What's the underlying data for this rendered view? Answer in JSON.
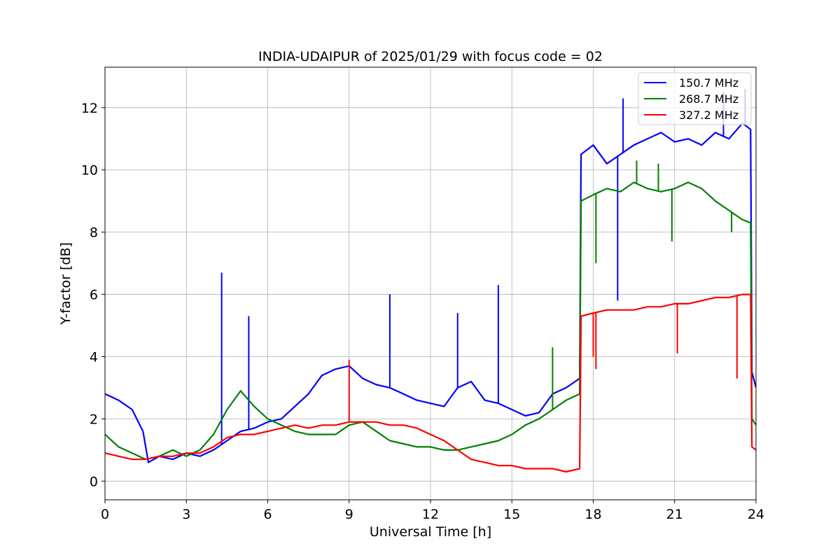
{
  "chart_data": {
    "type": "line",
    "title": "INDIA-UDAIPUR of 2025/01/29 with focus code = 02",
    "xlabel": "Universal Time [h]",
    "ylabel": "Y-factor [dB]",
    "xlim": [
      0,
      24
    ],
    "ylim": [
      -0.6,
      13.3
    ],
    "xticks": [
      0,
      3,
      6,
      9,
      12,
      15,
      18,
      21,
      24
    ],
    "yticks": [
      0,
      2,
      4,
      6,
      8,
      10,
      12
    ],
    "grid": true,
    "legend_position": "top-right",
    "series": [
      {
        "name": "150.7 MHz",
        "color": "#0000ff",
        "x": [
          0,
          0.5,
          1,
          1.4,
          1.6,
          2,
          2.5,
          3,
          3.5,
          4,
          4.5,
          5,
          5.5,
          6,
          6.5,
          7,
          7.5,
          8,
          8.5,
          9,
          9.5,
          10,
          10.5,
          11,
          11.5,
          12,
          12.5,
          13,
          13.5,
          14,
          14.5,
          15,
          15.5,
          16,
          16.5,
          17,
          17.5,
          17.55,
          18,
          18.5,
          19,
          19.5,
          20,
          20.5,
          21,
          21.5,
          22,
          22.5,
          23,
          23.5,
          23.8,
          23.85,
          24
        ],
        "y": [
          2.8,
          2.6,
          2.3,
          1.6,
          0.6,
          0.8,
          0.7,
          0.9,
          0.8,
          1.0,
          1.3,
          1.6,
          1.7,
          1.9,
          2.0,
          2.4,
          2.8,
          3.4,
          3.6,
          3.7,
          3.3,
          3.1,
          3.0,
          2.8,
          2.6,
          2.5,
          2.4,
          3.0,
          3.2,
          2.6,
          2.5,
          2.3,
          2.1,
          2.2,
          2.8,
          3.0,
          3.3,
          10.5,
          10.8,
          10.2,
          10.5,
          10.8,
          11.0,
          11.2,
          10.9,
          11.0,
          10.8,
          11.2,
          11.0,
          11.5,
          11.3,
          3.5,
          3.0
        ],
        "spikes": [
          [
            4.3,
            6.7
          ],
          [
            5.3,
            5.3
          ],
          [
            10.5,
            6.0
          ],
          [
            14.5,
            6.3
          ],
          [
            13.0,
            5.4
          ],
          [
            18.9,
            5.8
          ],
          [
            19.1,
            12.3
          ],
          [
            22.8,
            12.5
          ],
          [
            23.6,
            12.6
          ]
        ]
      },
      {
        "name": "268.7 MHz",
        "color": "#008000",
        "x": [
          0,
          0.5,
          1,
          1.5,
          2,
          2.5,
          3,
          3.5,
          4,
          4.5,
          5,
          5.5,
          6,
          6.5,
          7,
          7.5,
          8,
          8.5,
          9,
          9.5,
          10,
          10.5,
          11,
          11.5,
          12,
          12.5,
          13,
          13.5,
          14,
          14.5,
          15,
          15.5,
          16,
          16.5,
          17,
          17.5,
          17.55,
          18,
          18.5,
          19,
          19.5,
          20,
          20.5,
          21,
          21.5,
          22,
          22.5,
          23,
          23.5,
          23.8,
          23.85,
          24
        ],
        "y": [
          1.5,
          1.1,
          0.9,
          0.7,
          0.8,
          1.0,
          0.8,
          1.0,
          1.5,
          2.3,
          2.9,
          2.4,
          2.0,
          1.8,
          1.6,
          1.5,
          1.5,
          1.5,
          1.8,
          1.9,
          1.6,
          1.3,
          1.2,
          1.1,
          1.1,
          1.0,
          1.0,
          1.1,
          1.2,
          1.3,
          1.5,
          1.8,
          2.0,
          2.3,
          2.6,
          2.8,
          9.0,
          9.2,
          9.4,
          9.3,
          9.6,
          9.4,
          9.3,
          9.4,
          9.6,
          9.4,
          9.0,
          8.7,
          8.4,
          8.3,
          2.0,
          1.8
        ],
        "spikes": [
          [
            16.5,
            4.3
          ],
          [
            18.1,
            7.0
          ],
          [
            19.6,
            10.3
          ],
          [
            20.4,
            10.2
          ],
          [
            20.9,
            7.7
          ],
          [
            23.1,
            8.0
          ]
        ]
      },
      {
        "name": "327.2 MHz",
        "color": "#ff0000",
        "x": [
          0,
          0.5,
          1,
          1.5,
          2,
          2.5,
          3,
          3.5,
          4,
          4.5,
          5,
          5.5,
          6,
          6.5,
          7,
          7.5,
          8,
          8.5,
          9,
          9.5,
          10,
          10.5,
          11,
          11.5,
          12,
          12.5,
          13,
          13.5,
          14,
          14.5,
          15,
          15.5,
          16,
          16.5,
          17,
          17.5,
          17.55,
          18,
          18.5,
          19,
          19.5,
          20,
          20.5,
          21,
          21.5,
          22,
          22.5,
          23,
          23.5,
          23.8,
          23.85,
          24
        ],
        "y": [
          0.9,
          0.8,
          0.7,
          0.7,
          0.8,
          0.8,
          0.9,
          0.9,
          1.1,
          1.4,
          1.5,
          1.5,
          1.6,
          1.7,
          1.8,
          1.7,
          1.8,
          1.8,
          1.9,
          1.9,
          1.9,
          1.8,
          1.8,
          1.7,
          1.5,
          1.3,
          1.0,
          0.7,
          0.6,
          0.5,
          0.5,
          0.4,
          0.4,
          0.4,
          0.3,
          0.4,
          5.3,
          5.4,
          5.5,
          5.5,
          5.5,
          5.6,
          5.6,
          5.7,
          5.7,
          5.8,
          5.9,
          5.9,
          6.0,
          6.0,
          1.1,
          1.0
        ],
        "spikes": [
          [
            9.0,
            3.9
          ],
          [
            18.0,
            4.0
          ],
          [
            18.1,
            3.6
          ],
          [
            21.1,
            4.1
          ],
          [
            23.3,
            3.3
          ]
        ]
      }
    ]
  }
}
